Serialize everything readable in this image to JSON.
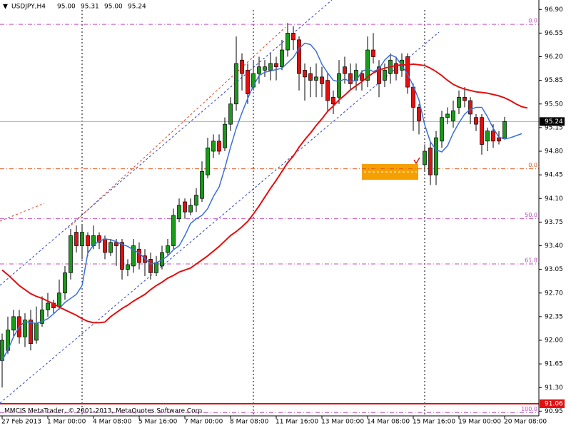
{
  "chart_data": {
    "type": "candlestick",
    "title": "USDJPY,H4",
    "title_values": [
      "95.00",
      "95.31",
      "95.00",
      "95.24"
    ],
    "footer": "MMCIS MetaTrader, © 2001-2013, MetaQuotes Software Corp.",
    "categories": [
      "27 Feb 2013",
      null,
      null,
      null,
      null,
      null,
      null,
      null,
      "1 Mar 00:00",
      null,
      null,
      null,
      null,
      null,
      null,
      null,
      "4 Mar 08:00",
      null,
      null,
      null,
      null,
      null,
      null,
      null,
      "5 Mar 16:00",
      null,
      null,
      null,
      null,
      null,
      null,
      null,
      "7 Mar 00:00",
      null,
      null,
      null,
      null,
      null,
      null,
      null,
      "8 Mar 08:00",
      null,
      null,
      null,
      null,
      null,
      null,
      null,
      "11 Mar 16:00",
      null,
      null,
      null,
      null,
      null,
      null,
      null,
      "13 Mar 00:00",
      null,
      null,
      null,
      null,
      null,
      null,
      null,
      "14 Mar 08:00",
      null,
      null,
      null,
      null,
      null,
      null,
      null,
      "15 Mar 16:00",
      null,
      null,
      null,
      null,
      null,
      null,
      null,
      "19 Mar 00:00",
      null,
      null,
      null,
      null,
      null,
      null,
      null,
      "20 Mar 08:00",
      null,
      null,
      null,
      null
    ],
    "candles": {
      "open": [
        91.7,
        91.85,
        92.15,
        92.35,
        92.05,
        92.3,
        92.0,
        92.25,
        92.45,
        92.55,
        92.5,
        92.7,
        93.0,
        93.6,
        93.4,
        93.55,
        93.4,
        93.55,
        93.5,
        93.3,
        93.45,
        93.45,
        93.05,
        93.1,
        93.35,
        93.25,
        93.2,
        93.0,
        93.1,
        93.3,
        93.4,
        93.8,
        94.05,
        93.9,
        94.0,
        94.1,
        94.45,
        94.8,
        94.95,
        94.85,
        95.2,
        95.5,
        96.15,
        96.0,
        95.75,
        95.95,
        96.0,
        96.0,
        96.1,
        96.05,
        96.3,
        96.55,
        96.45,
        96.0,
        95.95,
        95.85,
        95.9,
        95.85,
        95.6,
        95.6,
        96.05,
        95.95,
        95.85,
        95.95,
        95.85,
        96.3,
        96.05,
        95.85,
        95.95,
        96.1,
        96.0,
        96.2,
        95.75,
        95.45,
        94.6,
        94.85,
        94.45,
        94.95,
        95.3,
        95.25,
        95.45,
        95.6,
        95.55,
        95.3,
        95.3,
        94.95,
        95.1,
        95.0,
        95.0,
        null,
        null,
        null,
        null
      ],
      "high": [
        92.1,
        92.35,
        92.45,
        92.45,
        92.4,
        92.45,
        92.5,
        92.65,
        92.7,
        92.6,
        92.9,
        93.1,
        93.65,
        93.7,
        93.7,
        93.6,
        93.7,
        93.6,
        93.55,
        93.5,
        93.5,
        93.5,
        93.2,
        93.5,
        93.45,
        93.35,
        93.3,
        93.25,
        93.4,
        93.5,
        93.95,
        94.1,
        94.1,
        94.1,
        94.25,
        94.65,
        95.0,
        95.05,
        95.05,
        95.3,
        95.6,
        96.5,
        96.25,
        96.1,
        96.15,
        96.2,
        96.15,
        96.25,
        96.2,
        96.45,
        96.7,
        96.65,
        96.5,
        96.1,
        96.05,
        96.1,
        96.05,
        95.95,
        95.7,
        96.15,
        96.2,
        96.1,
        96.1,
        96.0,
        96.5,
        96.55,
        96.15,
        96.1,
        96.25,
        96.2,
        96.25,
        96.25,
        95.8,
        95.5,
        94.9,
        94.95,
        95.1,
        95.4,
        95.45,
        95.55,
        95.7,
        95.75,
        95.6,
        95.35,
        95.35,
        95.15,
        95.2,
        95.1,
        95.31,
        null,
        null,
        null,
        null
      ],
      "low": [
        91.3,
        91.8,
        92.05,
        91.95,
        91.9,
        91.85,
        91.95,
        92.2,
        92.35,
        92.4,
        92.45,
        92.6,
        92.9,
        93.3,
        93.2,
        93.25,
        93.35,
        93.35,
        93.2,
        93.25,
        93.1,
        92.9,
        92.95,
        93.0,
        93.05,
        92.95,
        92.9,
        92.95,
        93.05,
        93.25,
        93.35,
        93.75,
        93.8,
        93.85,
        93.9,
        94.05,
        94.4,
        94.7,
        94.75,
        94.8,
        95.1,
        95.4,
        95.7,
        95.5,
        95.7,
        95.8,
        95.9,
        95.85,
        95.85,
        96.0,
        96.2,
        96.3,
        95.7,
        95.55,
        95.6,
        95.6,
        95.6,
        95.4,
        95.35,
        95.5,
        95.8,
        95.7,
        95.7,
        95.7,
        95.75,
        96.1,
        95.6,
        95.75,
        95.8,
        95.85,
        95.9,
        95.65,
        95.1,
        95.05,
        94.5,
        94.3,
        94.3,
        94.85,
        95.2,
        95.15,
        95.35,
        95.45,
        95.2,
        95.1,
        94.75,
        94.8,
        94.85,
        94.9,
        95.0,
        null,
        null,
        null,
        null
      ],
      "close": [
        92.0,
        92.15,
        92.35,
        92.05,
        92.3,
        91.95,
        92.25,
        92.45,
        92.55,
        92.48,
        92.7,
        93.0,
        93.55,
        93.4,
        93.6,
        93.4,
        93.55,
        93.45,
        93.3,
        93.45,
        93.4,
        93.05,
        93.12,
        93.4,
        93.15,
        93.15,
        93.0,
        93.15,
        93.3,
        93.4,
        93.85,
        94.0,
        93.9,
        94.0,
        94.15,
        94.5,
        94.85,
        94.95,
        94.8,
        95.2,
        95.5,
        96.1,
        95.95,
        95.65,
        95.95,
        96.05,
        96.05,
        96.1,
        96.05,
        96.3,
        96.55,
        96.45,
        95.95,
        95.9,
        95.85,
        95.9,
        95.8,
        95.55,
        95.5,
        95.95,
        95.95,
        95.8,
        96.0,
        95.85,
        96.3,
        96.2,
        95.8,
        96.0,
        96.15,
        95.95,
        96.15,
        95.75,
        95.45,
        95.25,
        94.8,
        94.45,
        95.0,
        95.3,
        95.35,
        95.4,
        95.6,
        95.55,
        95.35,
        95.2,
        94.9,
        95.1,
        94.95,
        94.95,
        95.24,
        null,
        null,
        null,
        null
      ],
      "up_color": "#1a9a1a",
      "down_color": "#e01010"
    },
    "lines": [
      {
        "color": "#3b6fd6",
        "values": [
          91.7,
          91.86,
          92.05,
          92.2,
          92.28,
          92.26,
          92.25,
          92.28,
          92.32,
          92.39,
          92.47,
          92.56,
          92.62,
          92.68,
          92.81,
          93.29,
          93.41,
          93.47,
          93.5,
          93.49,
          93.46,
          93.42,
          93.39,
          93.34,
          93.29,
          93.21,
          93.13,
          93.15,
          93.19,
          93.25,
          93.34,
          93.4,
          93.55,
          93.73,
          93.8,
          93.85,
          93.95,
          94.13,
          94.27,
          94.55,
          94.86,
          95.14,
          95.37,
          95.58,
          95.77,
          95.92,
          95.97,
          95.99,
          96.01,
          96.03,
          96.11,
          96.19,
          96.32,
          96.4,
          96.38,
          96.28,
          96.09,
          95.96,
          95.85,
          95.83,
          95.87,
          95.83,
          95.85,
          95.98,
          96.02,
          95.98,
          96.02,
          96.15,
          96.23,
          96.19,
          96.07,
          95.94,
          95.77,
          95.56,
          95.19,
          94.94,
          94.82,
          94.79,
          94.88,
          95.07,
          95.22,
          95.35,
          95.42,
          95.45,
          95.45,
          95.31,
          95.14,
          95.01,
          94.98,
          95.0,
          95.03,
          95.06,
          null
        ]
      },
      {
        "color": "#e01010",
        "values": [
          93.04,
          92.97,
          92.89,
          92.81,
          92.75,
          92.69,
          92.65,
          92.62,
          92.58,
          92.54,
          92.49,
          92.45,
          92.41,
          92.37,
          92.32,
          92.28,
          92.26,
          92.26,
          92.27,
          92.35,
          92.41,
          92.47,
          92.52,
          92.58,
          92.63,
          92.68,
          92.75,
          92.81,
          92.86,
          92.92,
          92.96,
          93.01,
          93.04,
          93.07,
          93.13,
          93.19,
          93.25,
          93.32,
          93.39,
          93.47,
          93.55,
          93.61,
          93.68,
          93.76,
          93.87,
          93.99,
          94.12,
          94.25,
          94.37,
          94.5,
          94.63,
          94.73,
          94.86,
          94.97,
          95.07,
          95.18,
          95.28,
          95.39,
          95.47,
          95.56,
          95.63,
          95.71,
          95.77,
          95.83,
          95.9,
          95.96,
          96.0,
          96.03,
          96.05,
          96.07,
          96.08,
          96.08,
          96.09,
          96.08,
          96.07,
          96.03,
          95.98,
          95.92,
          95.85,
          95.79,
          95.75,
          95.72,
          95.7,
          95.68,
          95.67,
          95.66,
          95.64,
          95.62,
          95.59,
          95.55,
          95.5,
          95.46,
          95.44
        ]
      }
    ],
    "ylim": [
      90.88,
      97.04
    ],
    "yticks": [
      {
        "value": 96.9,
        "label": "96.90"
      },
      {
        "value": 96.55,
        "label": "96.55"
      },
      {
        "value": 96.2,
        "label": "96.20"
      },
      {
        "value": 95.85,
        "label": "95.85"
      },
      {
        "value": 95.5,
        "label": "95.50"
      },
      {
        "value": 95.15,
        "label": "95.15"
      },
      {
        "value": 94.8,
        "label": "94.80"
      },
      {
        "value": 94.45,
        "label": "94.45"
      },
      {
        "value": 94.1,
        "label": "94.10"
      },
      {
        "value": 93.75,
        "label": "93.75"
      },
      {
        "value": 93.4,
        "label": "93.40"
      },
      {
        "value": 93.05,
        "label": "93.05"
      },
      {
        "value": 92.7,
        "label": "92.70"
      },
      {
        "value": 92.35,
        "label": "92.35"
      },
      {
        "value": 92.0,
        "label": "92.00"
      },
      {
        "value": 91.65,
        "label": "91.65"
      },
      {
        "value": 91.3,
        "label": "91.30"
      },
      {
        "value": 90.95,
        "label": "90.95"
      }
    ],
    "grid": false,
    "fibo_levels": [
      {
        "value": 96.68,
        "label": "0.0"
      },
      {
        "value": 93.8,
        "label": "50.0"
      },
      {
        "value": 93.13,
        "label": "61.8"
      },
      {
        "value": 90.93,
        "label": "100.0"
      }
    ],
    "fibo_color": "#c050c0",
    "fibo2_levels": [
      {
        "value": 94.54,
        "label": "0.0"
      }
    ],
    "fibo2_color": "#e05a20",
    "last_price": {
      "value": 95.24,
      "label": "95.24"
    },
    "alert_line": {
      "value": 91.06,
      "label": "91.06",
      "color": "#e01010"
    }
  }
}
